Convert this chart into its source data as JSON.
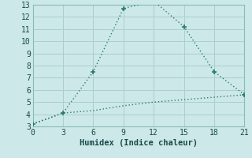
{
  "xlabel": "Humidex (Indice chaleur)",
  "background_color": "#cce8e8",
  "grid_color": "#aacece",
  "line_color": "#2a7a70",
  "line1_x": [
    0,
    3,
    6,
    9,
    12,
    15,
    18,
    21
  ],
  "line1_y": [
    3.2,
    4.1,
    7.5,
    12.7,
    13.3,
    11.2,
    7.5,
    5.6
  ],
  "line2_x": [
    0,
    3,
    6,
    9,
    12,
    15,
    18,
    21
  ],
  "line2_y": [
    3.2,
    4.1,
    4.3,
    4.7,
    5.0,
    5.2,
    5.4,
    5.6
  ],
  "xlim": [
    0,
    21
  ],
  "ylim": [
    3,
    13
  ],
  "xticks": [
    0,
    3,
    6,
    9,
    12,
    15,
    18,
    21
  ],
  "yticks": [
    3,
    4,
    5,
    6,
    7,
    8,
    9,
    10,
    11,
    12,
    13
  ],
  "marker": "+",
  "marker_size": 5,
  "line_width": 1.0,
  "tick_fontsize": 7,
  "xlabel_fontsize": 7.5
}
